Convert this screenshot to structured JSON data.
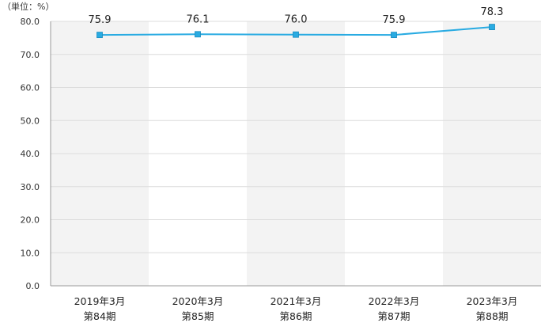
{
  "chart_data": {
    "type": "line",
    "unit_label": "（単位：%）",
    "categories": [
      {
        "line1": "2019年3月",
        "line2": "第84期"
      },
      {
        "line1": "2020年3月",
        "line2": "第85期"
      },
      {
        "line1": "2021年3月",
        "line2": "第86期"
      },
      {
        "line1": "2022年3月",
        "line2": "第87期"
      },
      {
        "line1": "2023年3月",
        "line2": "第88期"
      }
    ],
    "series": [
      {
        "values": [
          75.9,
          76.1,
          76.0,
          75.9,
          78.3
        ],
        "data_labels": [
          "75.9",
          "76.1",
          "76.0",
          "75.9",
          "78.3"
        ]
      }
    ],
    "ylim": [
      0,
      80
    ],
    "yticks": [
      "0.0",
      "10.0",
      "20.0",
      "30.0",
      "40.0",
      "50.0",
      "60.0",
      "70.0",
      "80.0"
    ],
    "grid": true,
    "colors": {
      "line": "#29abe2",
      "band": "#f3f3f3",
      "grid": "#dcdcdc",
      "axis": "#999999"
    }
  }
}
